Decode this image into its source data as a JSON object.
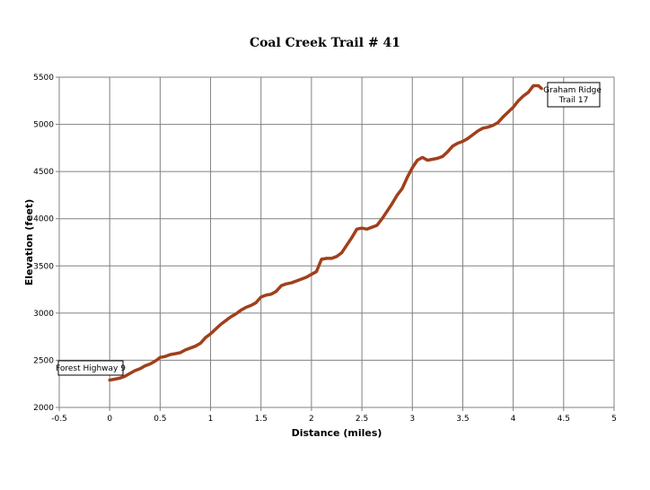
{
  "chart_data": {
    "type": "line",
    "title": "Coal Creek Trail # 41",
    "xlabel": "Distance (miles)",
    "ylabel": "Elevation (feet)",
    "xlim": [
      -0.5,
      5
    ],
    "ylim": [
      2000,
      5500
    ],
    "x_ticks": [
      "-0.5",
      "0",
      "0.5",
      "1",
      "1.5",
      "2",
      "2.5",
      "3",
      "3.5",
      "4",
      "4.5",
      "5"
    ],
    "y_ticks": [
      "2000",
      "2500",
      "3000",
      "3500",
      "4000",
      "4500",
      "5000",
      "5500"
    ],
    "grid": true,
    "legend": "none",
    "line_color": "#a0401c",
    "series": [
      {
        "x": [
          0,
          0.05,
          0.1,
          0.15,
          0.2,
          0.25,
          0.3,
          0.35,
          0.4,
          0.45,
          0.5,
          0.55,
          0.6,
          0.65,
          0.7,
          0.75,
          0.8,
          0.85,
          0.9,
          0.95,
          1.0,
          1.05,
          1.1,
          1.15,
          1.2,
          1.25,
          1.3,
          1.35,
          1.4,
          1.45,
          1.5,
          1.55,
          1.6,
          1.65,
          1.7,
          1.75,
          1.8,
          1.85,
          1.9,
          1.95,
          2.0,
          2.05,
          2.1,
          2.15,
          2.2,
          2.25,
          2.3,
          2.35,
          2.4,
          2.45,
          2.5,
          2.55,
          2.6,
          2.65,
          2.7,
          2.75,
          2.8,
          2.85,
          2.9,
          2.95,
          3.0,
          3.05,
          3.1,
          3.15,
          3.2,
          3.25,
          3.3,
          3.35,
          3.4,
          3.45,
          3.5,
          3.55,
          3.6,
          3.65,
          3.7,
          3.75,
          3.8,
          3.85,
          3.9,
          3.95,
          4.0,
          4.05,
          4.1,
          4.15,
          4.2,
          4.25,
          4.28
        ],
        "y": [
          2290,
          2300,
          2310,
          2330,
          2360,
          2390,
          2410,
          2440,
          2460,
          2490,
          2530,
          2540,
          2560,
          2570,
          2580,
          2610,
          2630,
          2650,
          2680,
          2740,
          2780,
          2830,
          2880,
          2920,
          2960,
          2990,
          3030,
          3060,
          3080,
          3110,
          3170,
          3190,
          3200,
          3230,
          3290,
          3310,
          3320,
          3340,
          3360,
          3380,
          3410,
          3440,
          3570,
          3580,
          3580,
          3600,
          3640,
          3720,
          3800,
          3890,
          3900,
          3890,
          3910,
          3930,
          4000,
          4080,
          4160,
          4250,
          4320,
          4440,
          4540,
          4620,
          4650,
          4620,
          4630,
          4640,
          4660,
          4710,
          4770,
          4800,
          4820,
          4850,
          4890,
          4930,
          4960,
          4970,
          4990,
          5020,
          5080,
          5130,
          5180,
          5250,
          5300,
          5340,
          5410,
          5410,
          5380
        ]
      }
    ],
    "annotations": [
      {
        "text": "Forest Highway 9"
      },
      {
        "text": "Graham Ridge Trail 17"
      }
    ]
  }
}
